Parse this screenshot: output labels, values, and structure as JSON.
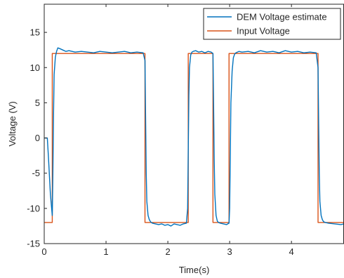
{
  "chart_data": {
    "type": "line",
    "xlabel": "Time(s)",
    "ylabel": "Voltage (V)",
    "xlim": [
      0,
      4.85
    ],
    "ylim": [
      -15,
      19
    ],
    "xticks": [
      0,
      1,
      2,
      3,
      4
    ],
    "yticks": [
      -15,
      -10,
      -5,
      0,
      5,
      10,
      15
    ],
    "grid": false,
    "legend_position": "top-right",
    "series": [
      {
        "name": "DEM Voltage estimate",
        "color": "#0072BD",
        "x": [
          0,
          0.05,
          0.07,
          0.1,
          0.13,
          0.14,
          0.15,
          0.16,
          0.18,
          0.2,
          0.22,
          0.25,
          0.3,
          0.35,
          0.4,
          0.5,
          0.6,
          0.7,
          0.8,
          0.9,
          1.0,
          1.1,
          1.2,
          1.3,
          1.4,
          1.5,
          1.6,
          1.63,
          1.64,
          1.65,
          1.66,
          1.68,
          1.7,
          1.72,
          1.75,
          1.8,
          1.85,
          1.9,
          1.95,
          2.0,
          2.05,
          2.1,
          2.15,
          2.2,
          2.25,
          2.3,
          2.32,
          2.33,
          2.34,
          2.35,
          2.37,
          2.39,
          2.41,
          2.45,
          2.5,
          2.55,
          2.6,
          2.65,
          2.7,
          2.73,
          2.74,
          2.75,
          2.76,
          2.78,
          2.8,
          2.82,
          2.85,
          2.9,
          2.95,
          2.99,
          3.0,
          3.01,
          3.02,
          3.04,
          3.06,
          3.08,
          3.1,
          3.15,
          3.2,
          3.3,
          3.4,
          3.5,
          3.6,
          3.7,
          3.8,
          3.9,
          4.0,
          4.1,
          4.2,
          4.3,
          4.4,
          4.43,
          4.44,
          4.45,
          4.46,
          4.48,
          4.5,
          4.52,
          4.55,
          4.6,
          4.7,
          4.8,
          4.85
        ],
        "values": [
          0,
          0,
          -3,
          -8,
          -11,
          -5,
          3,
          9,
          11.5,
          12.3,
          12.8,
          12.7,
          12.5,
          12.3,
          12.4,
          12.2,
          12.3,
          12.2,
          12.1,
          12.3,
          12.2,
          12.1,
          12.2,
          12.3,
          12.1,
          12.2,
          12.1,
          11,
          3,
          -5,
          -9,
          -11,
          -11.6,
          -11.9,
          -12.1,
          -12.2,
          -12.3,
          -12.2,
          -12.4,
          -12.3,
          -12.5,
          -12.2,
          -12.3,
          -12.4,
          -12.2,
          -12.1,
          -10,
          -2,
          6,
          10,
          11.8,
          12.2,
          12.3,
          12.4,
          12.2,
          12.3,
          12.1,
          12.3,
          12.2,
          12,
          5,
          -3,
          -8,
          -11,
          -11.8,
          -12,
          -12.1,
          -12.2,
          -12.3,
          -12.1,
          -10,
          -3,
          5,
          9.5,
          11.4,
          11.9,
          12.1,
          12.3,
          12.2,
          12.3,
          12.1,
          12.4,
          12.2,
          12.3,
          12.1,
          12.4,
          12.2,
          12.3,
          12.1,
          12.2,
          12.1,
          10,
          2,
          -5,
          -9,
          -11,
          -11.6,
          -11.9,
          -12,
          -12.1,
          -12.2,
          -12.3,
          -12.2
        ]
      },
      {
        "name": "Input Voltage",
        "color": "#D95319",
        "x": [
          0,
          0.13,
          0.13,
          1.63,
          1.63,
          2.33,
          2.33,
          2.73,
          2.73,
          2.99,
          2.99,
          4.43,
          4.43,
          4.85
        ],
        "values": [
          -12,
          -12,
          12,
          12,
          -12,
          -12,
          12,
          12,
          -12,
          -12,
          12,
          12,
          -12,
          -12
        ]
      }
    ]
  }
}
